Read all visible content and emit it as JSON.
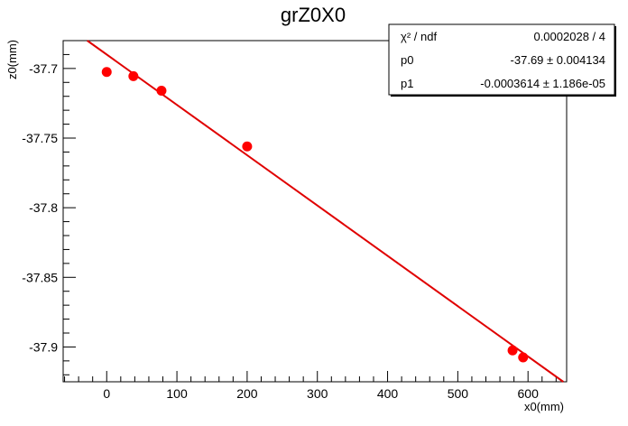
{
  "chart_data": {
    "type": "scatter",
    "title": "grZ0X0",
    "xlabel": "x0(mm)",
    "ylabel": "z0(mm)",
    "xlim": [
      -62,
      655
    ],
    "ylim": [
      -37.925,
      -37.68
    ],
    "x_ticks": [
      0,
      100,
      200,
      300,
      400,
      500,
      600
    ],
    "y_ticks": [
      -37.7,
      -37.75,
      -37.8,
      -37.85,
      -37.9
    ],
    "x_tick_labels": [
      "0",
      "100",
      "200",
      "300",
      "400",
      "500",
      "600"
    ],
    "y_tick_labels": [
      "-37.7",
      "-37.75",
      "-37.8",
      "-37.85",
      "-37.9"
    ],
    "grid": false,
    "points": [
      {
        "x": 0,
        "y": -37.7025
      },
      {
        "x": 38,
        "y": -37.7055
      },
      {
        "x": 78,
        "y": -37.716
      },
      {
        "x": 200,
        "y": -37.756
      },
      {
        "x": 578,
        "y": -37.9025
      },
      {
        "x": 593,
        "y": -37.9075
      }
    ],
    "fit": {
      "p0": -37.69,
      "p1": -0.0003614,
      "color": "#e00000"
    },
    "marker_color": "#ff0000",
    "stats": {
      "rows": [
        {
          "label": "χ² / ndf",
          "value": "0.0002028 / 4"
        },
        {
          "label": "p0",
          "value": "-37.69 ± 0.004134"
        },
        {
          "label": "p1",
          "value": "-0.0003614 ± 1.186e-05"
        }
      ]
    }
  }
}
